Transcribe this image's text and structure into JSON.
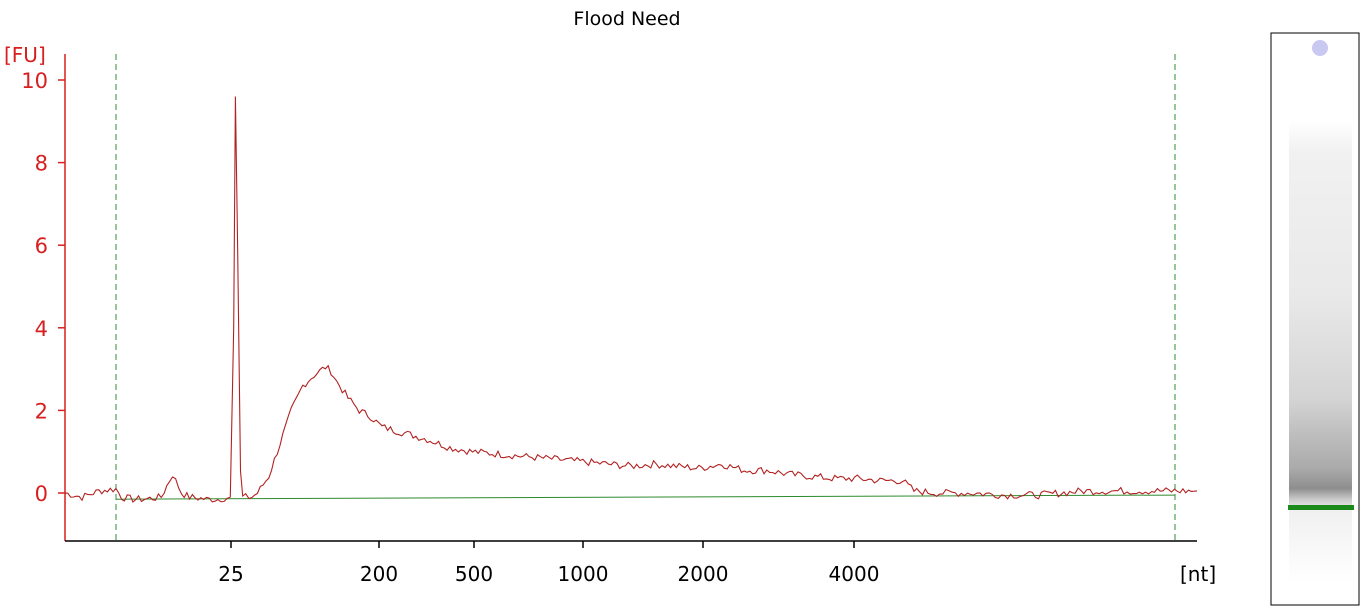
{
  "chart_data": {
    "type": "line",
    "title": "Flood Need",
    "ylabel": "[FU]",
    "xlabel": "[nt]",
    "ylim": [
      -1,
      10.5
    ],
    "yticks": [
      0,
      2,
      4,
      6,
      8,
      10
    ],
    "ytick_labels": [
      "0",
      "2",
      "4",
      "6",
      "8",
      "10"
    ],
    "xtick_labels": [
      "25",
      "200",
      "500",
      "1000",
      "2000",
      "4000"
    ],
    "x_scale": "nonlinear (electrophoresis time)",
    "grid": false,
    "markers": [
      "dashed vertical marker (lower)",
      "dashed vertical marker (upper)"
    ],
    "baseline": {
      "start_fu": -0.15,
      "end_fu": -0.05
    },
    "series": [
      {
        "color": "#b22222",
        "points": [
          [
            0.0,
            0.0
          ],
          [
            0.015,
            -0.1
          ],
          [
            0.03,
            0.05
          ],
          [
            0.045,
            0.1
          ],
          [
            0.05,
            -0.1
          ],
          [
            0.06,
            -0.15
          ],
          [
            0.07,
            -0.15
          ],
          [
            0.085,
            -0.1
          ],
          [
            0.095,
            0.45
          ],
          [
            0.103,
            0.0
          ],
          [
            0.11,
            -0.1
          ],
          [
            0.125,
            -0.15
          ],
          [
            0.135,
            -0.15
          ],
          [
            0.146,
            -0.1
          ],
          [
            0.149,
            4.0
          ],
          [
            0.1505,
            9.6
          ],
          [
            0.1525,
            6.0
          ],
          [
            0.155,
            0.5
          ],
          [
            0.157,
            -0.1
          ],
          [
            0.165,
            -0.1
          ],
          [
            0.17,
            0.0
          ],
          [
            0.18,
            0.4
          ],
          [
            0.19,
            1.2
          ],
          [
            0.2,
            2.0
          ],
          [
            0.21,
            2.6
          ],
          [
            0.22,
            2.85
          ],
          [
            0.23,
            3.05
          ],
          [
            0.235,
            2.95
          ],
          [
            0.24,
            2.7
          ],
          [
            0.25,
            2.3
          ],
          [
            0.26,
            2.0
          ],
          [
            0.27,
            1.85
          ],
          [
            0.28,
            1.6
          ],
          [
            0.3,
            1.45
          ],
          [
            0.32,
            1.3
          ],
          [
            0.34,
            1.1
          ],
          [
            0.36,
            1.0
          ],
          [
            0.38,
            0.95
          ],
          [
            0.4,
            0.9
          ],
          [
            0.42,
            0.85
          ],
          [
            0.44,
            0.8
          ],
          [
            0.46,
            0.75
          ],
          [
            0.48,
            0.7
          ],
          [
            0.5,
            0.65
          ],
          [
            0.52,
            0.7
          ],
          [
            0.54,
            0.65
          ],
          [
            0.56,
            0.6
          ],
          [
            0.58,
            0.7
          ],
          [
            0.6,
            0.55
          ],
          [
            0.62,
            0.55
          ],
          [
            0.64,
            0.45
          ],
          [
            0.66,
            0.4
          ],
          [
            0.68,
            0.35
          ],
          [
            0.7,
            0.35
          ],
          [
            0.72,
            0.3
          ],
          [
            0.74,
            0.3
          ],
          [
            0.75,
            0.05
          ],
          [
            0.77,
            0.0
          ],
          [
            0.8,
            0.0
          ],
          [
            0.83,
            -0.05
          ],
          [
            0.86,
            -0.05
          ],
          [
            0.88,
            0.0
          ],
          [
            0.9,
            0.05
          ],
          [
            0.93,
            0.05
          ],
          [
            0.96,
            0.05
          ],
          [
            0.98,
            0.05
          ],
          [
            1.0,
            0.05
          ]
        ]
      }
    ]
  },
  "gel_lane": {
    "marker_band_color": "#1a8a1a",
    "top_spot_color": "#c8c8f0"
  }
}
